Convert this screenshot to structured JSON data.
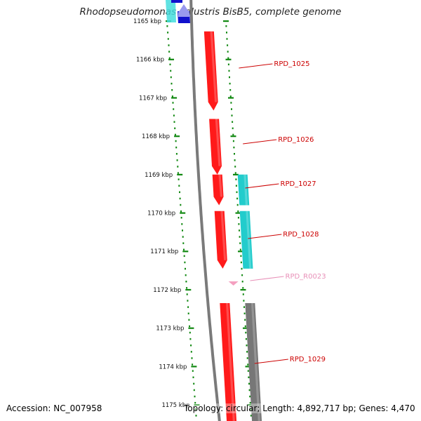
{
  "title": "Rhodopseudomonas palustris BisB5, complete genome",
  "footer": {
    "accession": "Accession: NC_007958",
    "topology": "Topology: circular; Length: 4,892,717 bp; Genes: 4,470"
  },
  "colors": {
    "gene_forward": "#ff1a1a",
    "gene_reverse": "#22cccc",
    "rna": "#f4a0c0",
    "backbone": "#7a7a7a",
    "ticks": "#118811",
    "label_gene": "#cc0000",
    "label_rna": "#e890b8"
  },
  "scale": {
    "ticks": [
      {
        "kbp": 1165,
        "label": "1165 kbp"
      },
      {
        "kbp": 1166,
        "label": "1166 kbp"
      },
      {
        "kbp": 1167,
        "label": "1167 kbp"
      },
      {
        "kbp": 1168,
        "label": "1168 kbp"
      },
      {
        "kbp": 1169,
        "label": "1169 kbp"
      },
      {
        "kbp": 1170,
        "label": "1170 kbp"
      },
      {
        "kbp": 1171,
        "label": "1171 kbp"
      },
      {
        "kbp": 1172,
        "label": "1172 kbp"
      },
      {
        "kbp": 1173,
        "label": "1173 kbp"
      },
      {
        "kbp": 1174,
        "label": "1174 kbp"
      },
      {
        "kbp": 1175,
        "label": "1175 kbp"
      }
    ]
  },
  "genes": [
    {
      "name": "RPD_1025",
      "start_kbp": 1165.27,
      "end_kbp": 1167.33,
      "strand": "forward",
      "type": "gene"
    },
    {
      "name": "RPD_1026",
      "start_kbp": 1167.55,
      "end_kbp": 1169.0,
      "strand": "forward",
      "type": "gene"
    },
    {
      "name": "RPD_1027",
      "start_kbp": 1169.0,
      "end_kbp": 1169.8,
      "strand": "forward",
      "type": "gene"
    },
    {
      "name": "RPD_1028",
      "start_kbp": 1169.95,
      "end_kbp": 1171.45,
      "strand": "forward",
      "type": "gene"
    },
    {
      "name": "RPD_R0023",
      "start_kbp": 1171.82,
      "end_kbp": 1171.9,
      "strand": "forward",
      "type": "rna"
    },
    {
      "name": "RPD_1029",
      "start_kbp": 1172.35,
      "end_kbp": 1175.5,
      "strand": "forward",
      "type": "gene"
    }
  ],
  "reverse_features": [
    {
      "start_kbp": 1169.0,
      "end_kbp": 1169.8,
      "type": "gene"
    },
    {
      "start_kbp": 1169.95,
      "end_kbp": 1171.45,
      "type": "gene"
    }
  ],
  "grey_features": [
    {
      "start_kbp": 1172.35,
      "end_kbp": 1175.5
    }
  ],
  "top_features": [
    {
      "color": "#44dddd"
    },
    {
      "color": "#1111cc"
    },
    {
      "color": "#9999ee"
    }
  ]
}
